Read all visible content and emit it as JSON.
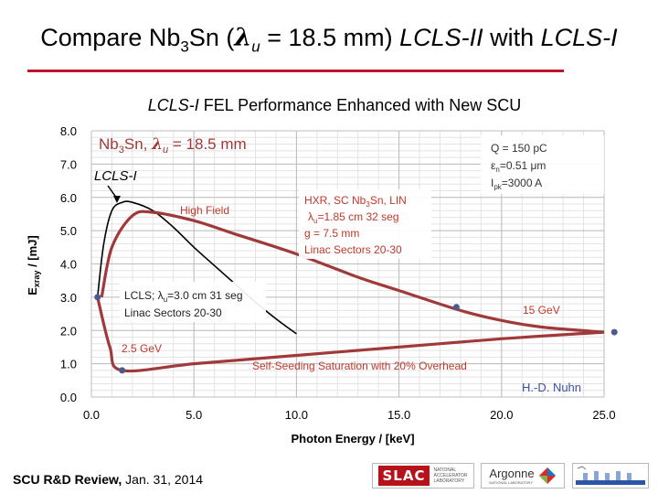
{
  "slide": {
    "title": {
      "prefix": "Compare Nb",
      "sub": "3",
      "middle": "Sn (",
      "lambda": "λ",
      "lambda_sub": "u",
      "rest": " = 18.5 mm) ",
      "italic1": "LCLS-II",
      "with": " with ",
      "italic2": "LCLS-I"
    },
    "footer": {
      "bold": "SCU R&D Review,",
      "rest": " Jan. 31, 2014"
    },
    "logos": {
      "slac": "SLAC",
      "slac_small": "NATIONAL ACCELERATOR LABORATORY",
      "argonne": "Argonne",
      "argonne_small": "NATIONAL LABORATORY"
    }
  },
  "chart_data": {
    "type": "line",
    "title_italic": "LCLS-I",
    "title_rest": " FEL Performance Enhanced with New SCU",
    "xlabel": "Photon Energy / [keV]",
    "ylabel_main": "E",
    "ylabel_sub": "xray",
    "ylabel_rest": " / [mJ]",
    "xlim": [
      0,
      25
    ],
    "ylim": [
      0,
      8
    ],
    "x_ticks": [
      0,
      5,
      10,
      15,
      20,
      25
    ],
    "x_tick_labels": [
      "0.0",
      "5.0",
      "10.0",
      "15.0",
      "20.0",
      "25.0"
    ],
    "y_ticks": [
      0,
      1,
      2,
      3,
      4,
      5,
      6,
      7,
      8
    ],
    "y_tick_labels": [
      "0.0",
      "1.0",
      "2.0",
      "3.0",
      "4.0",
      "5.0",
      "6.0",
      "7.0",
      "8.0"
    ],
    "grid": true,
    "colors": {
      "nb3sn": "#a03a3a",
      "lcls1": "#000000",
      "point": "#4d5a8c",
      "note": "#c0392b"
    },
    "series": [
      {
        "name": "LCLS-I",
        "color": "#000000",
        "x": [
          0.3,
          0.6,
          1.0,
          1.5,
          2.0,
          3.0,
          4.0,
          5.0,
          6.0,
          7.0,
          8.0,
          9.0,
          10.0
        ],
        "y": [
          3.0,
          4.6,
          5.6,
          5.85,
          5.85,
          5.6,
          5.1,
          4.5,
          3.95,
          3.4,
          2.85,
          2.35,
          1.9
        ]
      },
      {
        "name": "Nb3Sn High Field",
        "color": "#a03a3a",
        "x": [
          0.5,
          1.0,
          2.0,
          3.0,
          5.0,
          7.0,
          10.0,
          13.0,
          15.0,
          18.0,
          20.0,
          22.0,
          25.0
        ],
        "y": [
          3.0,
          4.5,
          5.45,
          5.55,
          5.3,
          4.9,
          4.3,
          3.6,
          3.2,
          2.6,
          2.3,
          2.1,
          1.95
        ]
      },
      {
        "name": "Self-Seeding",
        "color": "#a03a3a",
        "x": [
          0.3,
          0.9,
          1.5,
          5.0,
          10.0,
          15.0,
          20.0,
          25.0
        ],
        "y": [
          3.0,
          1.5,
          0.8,
          1.0,
          1.25,
          1.5,
          1.75,
          1.95
        ]
      }
    ],
    "points": [
      {
        "x": 0.3,
        "y": 3.0
      },
      {
        "x": 1.5,
        "y": 0.8
      },
      {
        "x": 17.8,
        "y": 2.7
      },
      {
        "x": 25.5,
        "y": 1.95
      }
    ],
    "annotations": {
      "nb3sn_label": "Nb3Sn, λu = 18.5 mm",
      "lcls1_label": "LCLS-I",
      "high_field": "High Field",
      "q_box": [
        "Q = 150 pC",
        "εn=0.51 μm",
        "Ipk=3000 A"
      ],
      "hxr_box": [
        "HXR, SC  Nb3Sn, LIN",
        "λu=1.85 cm 32 seg",
        "g = 7.5 mm",
        "Linac Sectors 20-30"
      ],
      "lcls_box": [
        "LCLS; λu=3.0 cm 31 seg",
        "Linac Sectors 20-30"
      ],
      "gev15": "15 GeV",
      "gev25": "2.5 GeV",
      "self_seeding": "Self-Seeding Saturation with 20% Overhead",
      "author": "H.-D. Nuhn"
    }
  }
}
